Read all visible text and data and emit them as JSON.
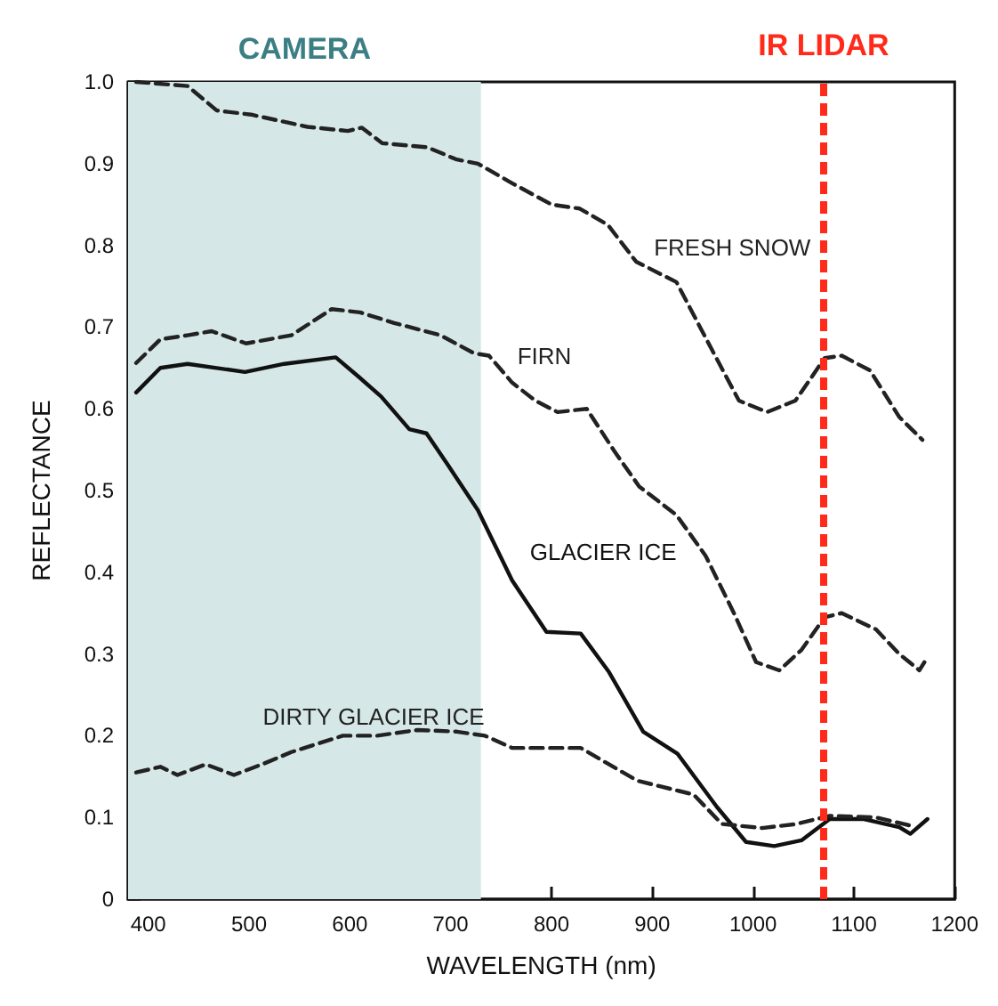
{
  "chart_data": {
    "type": "line",
    "xlabel": "WAVELENGTH (nm)",
    "ylabel": "REFLECTANCE",
    "xlim": [
      380,
      1200
    ],
    "xticks": [
      400,
      500,
      600,
      700,
      800,
      900,
      1000,
      1100,
      1200
    ],
    "ylim": [
      0,
      1
    ],
    "yticks": [
      0,
      0.1,
      0.2,
      0.3,
      0.4,
      0.5,
      0.6,
      0.7,
      0.8,
      0.9,
      {
        "value": 1,
        "label": "1.0"
      }
    ],
    "grid": false,
    "marker": "none",
    "series": [
      {
        "name": "FRESH SNOW",
        "color": "#222222",
        "line_style": "dashed",
        "x": [
          388,
          439,
          468,
          502,
          558,
          598,
          612,
          632,
          677,
          706,
          727,
          761,
          800,
          828,
          856,
          884,
          924,
          958,
          986,
          1014,
          1042,
          1071,
          1088,
          1116,
          1145,
          1168
        ],
        "values": [
          1.0,
          0.995,
          0.965,
          0.96,
          0.945,
          0.94,
          0.944,
          0.925,
          0.92,
          0.905,
          0.9,
          0.876,
          0.85,
          0.845,
          0.825,
          0.78,
          0.755,
          0.675,
          0.61,
          0.596,
          0.61,
          0.662,
          0.665,
          0.647,
          0.59,
          0.562
        ]
      },
      {
        "name": "FIRN",
        "color": "#222222",
        "line_style": "dashed",
        "x": [
          388,
          412,
          439,
          463,
          497,
          542,
          582,
          610,
          644,
          690,
          723,
          738,
          761,
          784,
          806,
          835,
          863,
          887,
          924,
          953,
          981,
          1003,
          1026,
          1048,
          1071,
          1088,
          1122,
          1145,
          1165,
          1170
        ],
        "values": [
          0.656,
          0.685,
          0.69,
          0.695,
          0.68,
          0.69,
          0.722,
          0.718,
          0.705,
          0.69,
          0.668,
          0.665,
          0.632,
          0.61,
          0.596,
          0.6,
          0.547,
          0.505,
          0.47,
          0.42,
          0.35,
          0.29,
          0.28,
          0.305,
          0.345,
          0.35,
          0.33,
          0.3,
          0.28,
          0.29
        ]
      },
      {
        "name": "GLACIER ICE",
        "color": "#111111",
        "line_style": "solid",
        "x": [
          388,
          412,
          439,
          496,
          535,
          586,
          608,
          631,
          659,
          676,
          698,
          727,
          761,
          795,
          829,
          857,
          891,
          925,
          964,
          993,
          1021,
          1048,
          1076,
          1110,
          1145,
          1156,
          1173
        ],
        "values": [
          0.62,
          0.65,
          0.655,
          0.645,
          0.655,
          0.663,
          0.64,
          0.615,
          0.575,
          0.57,
          0.53,
          0.476,
          0.39,
          0.327,
          0.325,
          0.278,
          0.205,
          0.178,
          0.113,
          0.07,
          0.065,
          0.072,
          0.098,
          0.098,
          0.088,
          0.08,
          0.098
        ]
      },
      {
        "name": "DIRTY GLACIER ICE",
        "color": "#222222",
        "line_style": "dashed",
        "x": [
          388,
          412,
          429,
          457,
          485,
          513,
          542,
          593,
          627,
          667,
          706,
          734,
          761,
          800,
          829,
          885,
          941,
          969,
          1009,
          1043,
          1076,
          1122,
          1156
        ],
        "values": [
          0.155,
          0.162,
          0.152,
          0.165,
          0.152,
          0.165,
          0.18,
          0.2,
          0.2,
          0.207,
          0.205,
          0.2,
          0.185,
          0.185,
          0.185,
          0.145,
          0.128,
          0.092,
          0.087,
          0.092,
          0.102,
          0.1,
          0.09
        ]
      }
    ],
    "bands": [
      {
        "axis": "x",
        "from": 380,
        "to": 730,
        "label": "CAMERA",
        "color": "#d6e7e7"
      }
    ],
    "ref_lines": [
      {
        "axis": "x",
        "value": 1070,
        "label": "IR LIDAR",
        "color": "#ff2a1a",
        "line_style": "dashed"
      }
    ]
  }
}
